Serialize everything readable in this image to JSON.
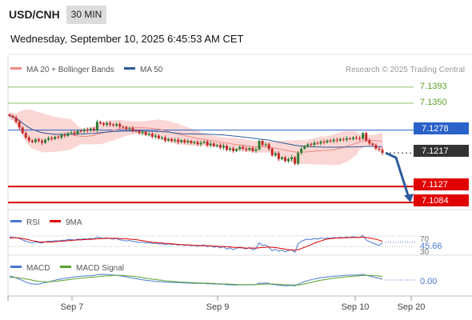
{
  "header": {
    "symbol": "USD/CNH",
    "timeframe": "30 MIN",
    "datetime": "Wednesday, September 10, 2025 6:45:53 AM CET"
  },
  "colors": {
    "candle_up": "#2e7d32",
    "candle_down": "#c62828",
    "bollinger_band": "#f8c9c7",
    "ma20": "#ef8a84",
    "ma50": "#2c5a9c",
    "resistance": "#8fc16b",
    "pivot": "#2a62c9",
    "support": "#e00000",
    "current": "#333333",
    "arrow": "#2c5a9c"
  },
  "legend_main": {
    "ma20_label": "MA 20 + Bollinger Bands",
    "ma50_label": "MA 50",
    "credit": "Research © 2025 Trading Central"
  },
  "levels": {
    "r2": "7.1393",
    "r1": "7.1350",
    "pivot": "7.1278",
    "current": "7.1217",
    "s1": "7.1127",
    "s2": "7.1084"
  },
  "rsi_panel": {
    "legend_rsi": "RSI",
    "legend_ma": "9MA",
    "level_70": "70",
    "value": "45.66",
    "level_30": "30"
  },
  "macd_panel": {
    "legend_macd": "MACD",
    "legend_signal": "MACD Signal",
    "value": "0.00"
  },
  "x_axis": {
    "labels": [
      "Sep 7",
      "Sep 9",
      "Sep 10",
      "Sep 20"
    ]
  },
  "chart_data": [
    {
      "type": "line",
      "panel": "price",
      "title": "USD/CNH 30 MIN",
      "ylabel": "",
      "ylim": [
        7.1065,
        7.1425
      ],
      "close": [
        7.1316,
        7.1312,
        7.13,
        7.1285,
        7.127,
        7.1258,
        7.125,
        7.1246,
        7.1253,
        7.1249,
        7.1244,
        7.1252,
        7.1257,
        7.1254,
        7.126,
        7.1258,
        7.1265,
        7.1263,
        7.127,
        7.1272,
        7.1268,
        7.1276,
        7.1275,
        7.1279,
        7.1277,
        7.1282,
        7.1278,
        7.13,
        7.1296,
        7.1292,
        7.1297,
        7.1293,
        7.129,
        7.1294,
        7.1287,
        7.1286,
        7.1281,
        7.1283,
        7.1277,
        7.1276,
        7.127,
        7.1273,
        7.1265,
        7.1268,
        7.126,
        7.1263,
        7.1256,
        7.1258,
        7.125,
        7.1254,
        7.1249,
        7.1252,
        7.1246,
        7.1251,
        7.1245,
        7.1249,
        7.1243,
        7.1246,
        7.124,
        7.1244,
        7.1247,
        7.1237,
        7.1242,
        7.1235,
        7.1238,
        7.1231,
        7.1236,
        7.1225,
        7.1229,
        7.1222,
        7.1227,
        7.1233,
        7.1228,
        7.1225,
        7.123,
        7.1222,
        7.1226,
        7.1249,
        7.1238,
        7.124,
        7.1228,
        7.121,
        7.1216,
        7.12,
        7.1205,
        7.1195,
        7.12,
        7.1205,
        7.1188,
        7.1217,
        7.1228,
        7.1235,
        7.124,
        7.1238,
        7.1244,
        7.1242,
        7.1247,
        7.1245,
        7.125,
        7.1248,
        7.1252,
        7.125,
        7.1254,
        7.1252,
        7.1256,
        7.1254,
        7.1258,
        7.1256,
        7.1255,
        7.127,
        7.125,
        7.1242,
        7.1238,
        7.1228,
        7.1225,
        7.1217
      ],
      "series": [
        {
          "name": "MA 20 + Bollinger Bands"
        },
        {
          "name": "MA 50"
        }
      ],
      "horizontal_levels": [
        7.1393,
        7.135,
        7.1278,
        7.1217,
        7.1127,
        7.1084
      ],
      "projection_target": 7.1084
    },
    {
      "type": "line",
      "panel": "rsi",
      "ylim": [
        0,
        100
      ],
      "reference_lines": [
        70,
        30
      ],
      "series": [
        {
          "name": "RSI",
          "values": [
            66,
            65,
            63,
            60,
            55,
            50,
            46,
            44,
            47,
            45,
            43,
            48,
            50,
            49,
            52,
            51,
            54,
            53,
            56,
            57,
            54,
            58,
            57,
            59,
            58,
            61,
            59,
            66,
            63,
            61,
            63,
            60,
            58,
            60,
            55,
            54,
            51,
            53,
            49,
            48,
            45,
            47,
            43,
            45,
            41,
            43,
            39,
            41,
            37,
            40,
            37,
            39,
            35,
            38,
            34,
            37,
            33,
            35,
            31,
            34,
            36,
            29,
            33,
            27,
            30,
            25,
            29,
            20,
            25,
            18,
            23,
            28,
            24,
            21,
            26,
            18,
            22,
            44,
            34,
            36,
            26,
            14,
            20,
            12,
            16,
            10,
            15,
            18,
            8,
            40,
            50,
            55,
            58,
            56,
            60,
            58,
            62,
            60,
            63,
            61,
            64,
            62,
            65,
            63,
            66,
            64,
            67,
            65,
            64,
            72,
            55,
            48,
            44,
            38,
            34,
            46
          ]
        },
        {
          "name": "9MA",
          "values": [
            62,
            63,
            63,
            62,
            60,
            58,
            55,
            52,
            50,
            48,
            47,
            47,
            47,
            47,
            48,
            49,
            50,
            51,
            52,
            53,
            54,
            55,
            55,
            56,
            57,
            57,
            58,
            59,
            60,
            60,
            61,
            61,
            61,
            61,
            60,
            60,
            59,
            58,
            57,
            56,
            54,
            52,
            50,
            48,
            46,
            45,
            44,
            43,
            42,
            41,
            40,
            39,
            38,
            37,
            36,
            35,
            35,
            34,
            34,
            33,
            33,
            33,
            32,
            31,
            31,
            30,
            30,
            29,
            28,
            27,
            26,
            25,
            25,
            24,
            24,
            24,
            24,
            25,
            26,
            27,
            28,
            27,
            26,
            24,
            22,
            20,
            18,
            17,
            16,
            18,
            22,
            27,
            32,
            37,
            42,
            47,
            51,
            55,
            58,
            60,
            61,
            62,
            62,
            63,
            63,
            64,
            64,
            64,
            65,
            65,
            64,
            62,
            60,
            57,
            54,
            50
          ]
        }
      ]
    },
    {
      "type": "line",
      "panel": "macd",
      "ylim": [
        -0.006,
        0.006
      ],
      "series": [
        {
          "name": "MACD",
          "values": [
            0.0015,
            0.0012,
            0.0008,
            0.0003,
            -0.0002,
            -0.0008,
            -0.0012,
            -0.0015,
            -0.0016,
            -0.0015,
            -0.0013,
            -0.001,
            -0.0007,
            -0.0004,
            -0.0001,
            0.0002,
            0.0004,
            0.0006,
            0.0008,
            0.001,
            0.0012,
            0.0013,
            0.0014,
            0.0015,
            0.0016,
            0.0016,
            0.0017,
            0.002,
            0.0021,
            0.0021,
            0.0021,
            0.002,
            0.0019,
            0.0018,
            0.0016,
            0.0014,
            0.0012,
            0.001,
            0.0007,
            0.0005,
            0.0003,
            0.0001,
            -0.0001,
            -0.0002,
            -0.0004,
            -0.0005,
            -0.0006,
            -0.0007,
            -0.0008,
            -0.0008,
            -0.0009,
            -0.0009,
            -0.001,
            -0.001,
            -0.0011,
            -0.0011,
            -0.0012,
            -0.0012,
            -0.0013,
            -0.0013,
            -0.0013,
            -0.0014,
            -0.0014,
            -0.0015,
            -0.0015,
            -0.0016,
            -0.0016,
            -0.0018,
            -0.0018,
            -0.0019,
            -0.0019,
            -0.0018,
            -0.0018,
            -0.0018,
            -0.0017,
            -0.0018,
            -0.0017,
            -0.0012,
            -0.0012,
            -0.0011,
            -0.0013,
            -0.0017,
            -0.0017,
            -0.002,
            -0.002,
            -0.0022,
            -0.0021,
            -0.002,
            -0.0022,
            -0.0016,
            -0.0011,
            -0.0006,
            -0.0002,
            0.0001,
            0.0004,
            0.0006,
            0.0009,
            0.001,
            0.0012,
            0.0013,
            0.0014,
            0.0015,
            0.0016,
            0.0017,
            0.0018,
            0.0018,
            0.0019,
            0.0019,
            0.0019,
            0.0021,
            0.0018,
            0.0015,
            0.0012,
            0.0009,
            0.0006,
            0.0003
          ]
        },
        {
          "name": "MACD Signal",
          "values": [
            0.001,
            0.001,
            0.0009,
            0.0008,
            0.0006,
            0.0004,
            0.0002,
            -0.0001,
            -0.0003,
            -0.0005,
            -0.0006,
            -0.0007,
            -0.0007,
            -0.0006,
            -0.0005,
            -0.0004,
            -0.0002,
            -0.0001,
            0.0001,
            0.0003,
            0.0004,
            0.0006,
            0.0007,
            0.0008,
            0.0009,
            0.001,
            0.0011,
            0.0012,
            0.0014,
            0.0015,
            0.0016,
            0.0016,
            0.0017,
            0.0017,
            0.0017,
            0.0017,
            0.0016,
            0.0015,
            0.0014,
            0.0013,
            0.0011,
            0.0009,
            0.0007,
            0.0005,
            0.0003,
            0.0002,
            0.0,
            -0.0001,
            -0.0003,
            -0.0004,
            -0.0005,
            -0.0006,
            -0.0007,
            -0.0008,
            -0.0008,
            -0.0009,
            -0.001,
            -0.001,
            -0.0011,
            -0.0011,
            -0.0012,
            -0.0012,
            -0.0013,
            -0.0013,
            -0.0014,
            -0.0014,
            -0.0015,
            -0.0015,
            -0.0016,
            -0.0016,
            -0.0017,
            -0.0017,
            -0.0017,
            -0.0017,
            -0.0017,
            -0.0017,
            -0.0017,
            -0.0016,
            -0.0016,
            -0.0015,
            -0.0015,
            -0.0015,
            -0.0016,
            -0.0016,
            -0.0017,
            -0.0018,
            -0.0018,
            -0.0019,
            -0.0019,
            -0.0019,
            -0.0017,
            -0.0015,
            -0.0012,
            -0.0009,
            -0.0006,
            -0.0003,
            -0.0001,
            0.0001,
            0.0003,
            0.0005,
            0.0007,
            0.0008,
            0.0009,
            0.0011,
            0.0012,
            0.0013,
            0.0014,
            0.0015,
            0.0016,
            0.0017,
            0.0017,
            0.0017,
            0.0017,
            0.0016,
            0.0015,
            0.0013
          ]
        }
      ]
    }
  ]
}
